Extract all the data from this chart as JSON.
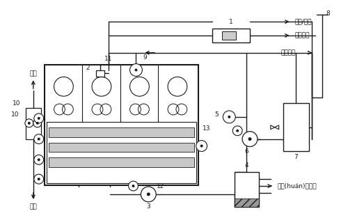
{
  "bg_color": "#ffffff",
  "labels": {
    "fuel": "燃氣/燃油",
    "air": "助燃空氣",
    "nitrogen": "補充氮氣",
    "cooling": "循環(huán)冷卻水",
    "feed_in": "進料",
    "feed_out": "出料"
  }
}
